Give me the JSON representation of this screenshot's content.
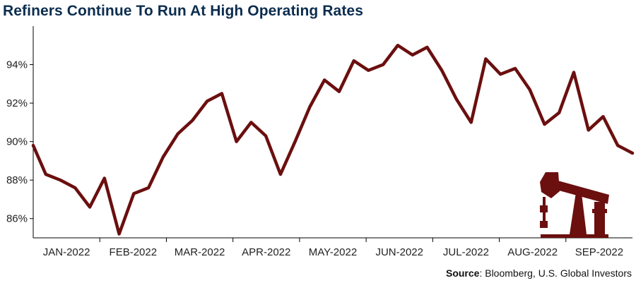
{
  "title": "Refiners Continue To Run At High Operating Rates",
  "source": {
    "label": "Source",
    "text": ": Bloomberg, U.S. Global Investors"
  },
  "colors": {
    "line": "#6b0f0f",
    "title": "#0b2d4f",
    "icon": "#6b0f0f"
  },
  "icon": "oil-pumpjack-icon",
  "chart_data": {
    "type": "line",
    "title": "Refiners Continue To Run At High Operating Rates",
    "xlabel": "",
    "ylabel": "",
    "ylim": [
      85,
      96
    ],
    "yticks": [
      86,
      88,
      90,
      92,
      94
    ],
    "ytick_labels": [
      "86%",
      "88%",
      "90%",
      "92%",
      "94%"
    ],
    "grid": false,
    "categories": [
      "JAN-2022",
      "FEB-2022",
      "MAR-2022",
      "APR-2022",
      "MAY-2022",
      "JUN-2022",
      "JUL-2022",
      "AUG-2022",
      "SEP-2022"
    ],
    "x": [
      "2022-01-01",
      "2022-01-07",
      "2022-01-14",
      "2022-01-21",
      "2022-01-28",
      "2022-02-04",
      "2022-02-11",
      "2022-02-18",
      "2022-02-25",
      "2022-03-04",
      "2022-03-11",
      "2022-03-18",
      "2022-03-25",
      "2022-04-01",
      "2022-04-08",
      "2022-04-15",
      "2022-04-22",
      "2022-04-29",
      "2022-05-06",
      "2022-05-13",
      "2022-05-20",
      "2022-05-27",
      "2022-06-03",
      "2022-06-10",
      "2022-06-17",
      "2022-06-24",
      "2022-07-01",
      "2022-07-08",
      "2022-07-15",
      "2022-07-22",
      "2022-07-29",
      "2022-08-05",
      "2022-08-12",
      "2022-08-19",
      "2022-08-26",
      "2022-09-02",
      "2022-09-09",
      "2022-09-16",
      "2022-09-23",
      "2022-09-30",
      "2022-10-07",
      "2022-10-14"
    ],
    "series": [
      {
        "values": [
          89.8,
          88.3,
          88.0,
          87.6,
          86.6,
          88.1,
          85.2,
          87.3,
          87.6,
          89.2,
          90.4,
          91.1,
          92.1,
          92.5,
          90.0,
          91.0,
          90.3,
          88.3,
          90.0,
          91.8,
          93.2,
          92.6,
          94.2,
          93.7,
          94.0,
          95.0,
          94.5,
          94.9,
          93.7,
          92.2,
          91.0,
          94.3,
          93.5,
          93.8,
          92.7,
          90.9,
          91.5,
          93.6,
          90.6,
          91.3,
          89.8,
          89.4
        ]
      }
    ]
  }
}
